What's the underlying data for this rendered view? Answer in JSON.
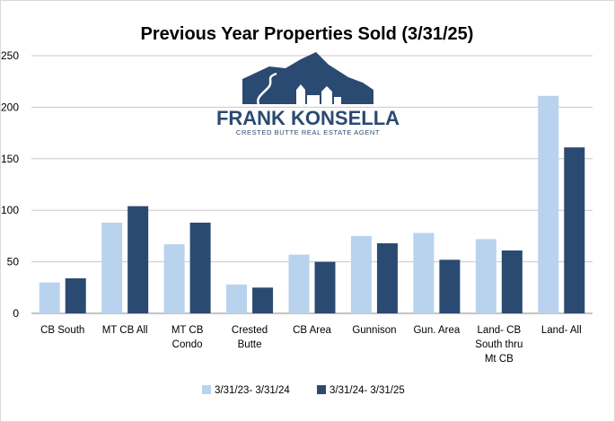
{
  "chart_data": {
    "type": "bar",
    "title": "Previous Year Properties Sold (3/31/25)",
    "xlabel": "",
    "ylabel": "",
    "ylim": [
      0,
      250
    ],
    "yticks": [
      0,
      50,
      100,
      150,
      200,
      250
    ],
    "grid": true,
    "legend_position": "bottom",
    "categories": [
      [
        "CB South"
      ],
      [
        "MT CB All"
      ],
      [
        "MT CB",
        "Condo"
      ],
      [
        "Crested",
        "Butte"
      ],
      [
        "CB Area"
      ],
      [
        "Gunnison"
      ],
      [
        "Gun. Area"
      ],
      [
        "Land- CB",
        "South thru",
        "Mt CB"
      ],
      [
        "Land- All"
      ]
    ],
    "series": [
      {
        "name": "3/31/23- 3/31/24",
        "color": "#b9d3ee",
        "values": [
          30,
          88,
          67,
          28,
          57,
          75,
          78,
          72,
          211
        ]
      },
      {
        "name": "3/31/24- 3/31/25",
        "color": "#2b4a72",
        "values": [
          34,
          104,
          88,
          25,
          50,
          68,
          52,
          61,
          161
        ]
      }
    ]
  },
  "logo": {
    "name": "FRANK KONSELLA",
    "tagline": "CRESTED BUTTE REAL ESTATE AGENT"
  }
}
